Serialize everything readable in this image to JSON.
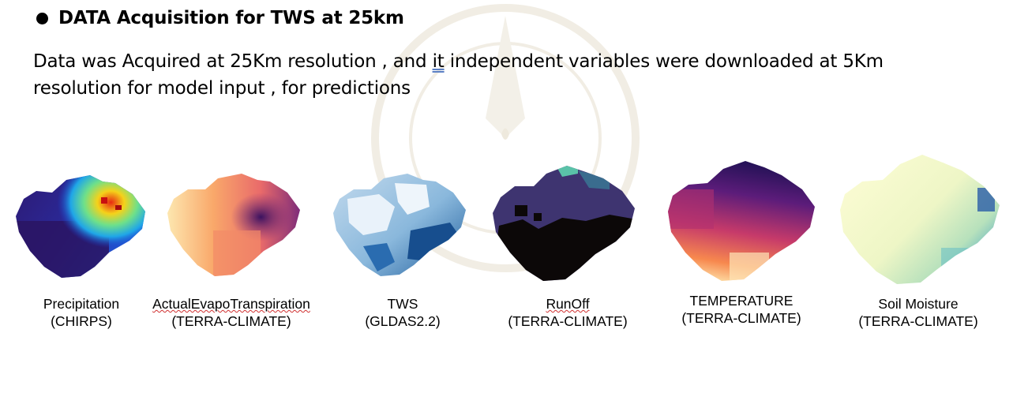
{
  "heading": "DATA Acquisition for TWS at 25km",
  "paragraph": {
    "part1": "Data was Acquired at 25Km resolution , and ",
    "underlined": "it",
    "part2": " independent variables were downloaded at 5Km",
    "line2": "resolution for model input , for predictions"
  },
  "maps": [
    {
      "name": "Precipitation",
      "source": "(CHIRPS)",
      "palette": "jet"
    },
    {
      "name": "ActualEvapoTranspiration",
      "source": "(TERRA-CLIMATE)",
      "palette": "orange-purple"
    },
    {
      "name": "TWS",
      "source": "(GLDAS2.2)",
      "palette": "blues"
    },
    {
      "name": "RunOff",
      "source": "(TERRA-CLIMATE)",
      "palette": "navy-black-teal"
    },
    {
      "name": "TEMPERATURE",
      "source": "(TERRA-CLIMATE)",
      "palette": "magma"
    },
    {
      "name": "Soil Moisture",
      "source": "(TERRA-CLIMATE)",
      "palette": "yellow-green-blue"
    }
  ],
  "colors": {
    "text": "#000000",
    "watermark": "#f1ede4",
    "spell_underline": "#d03030"
  }
}
